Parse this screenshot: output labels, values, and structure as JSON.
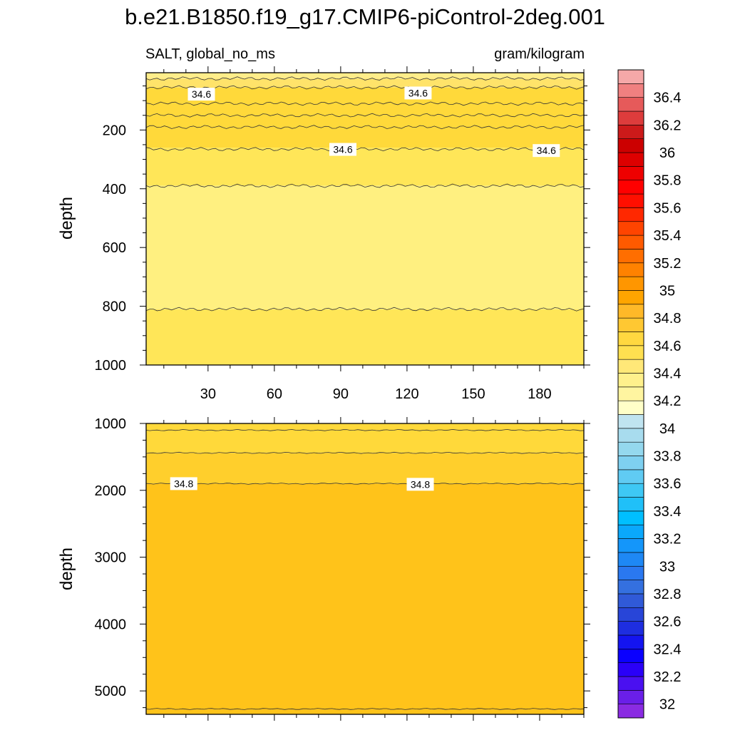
{
  "title": "b.e21.B1850.f19_g17.CMIP6-piControl-2deg.001",
  "chart_data": {
    "type": "contour",
    "variable_label": "SALT, global_no_ms",
    "units_label": "gram/kilogram",
    "x_range": [
      2,
      200
    ],
    "x_ticks": [
      30,
      60,
      90,
      120,
      150,
      180
    ],
    "colorbar": {
      "levels": [
        32,
        32.1,
        32.2,
        32.3,
        32.4,
        32.5,
        32.6,
        32.7,
        32.8,
        32.9,
        33,
        33.1,
        33.2,
        33.3,
        33.4,
        33.5,
        33.6,
        33.7,
        33.8,
        33.9,
        34,
        34.1,
        34.2,
        34.3,
        34.4,
        34.5,
        34.6,
        34.7,
        34.8,
        34.9,
        35,
        35.1,
        35.2,
        35.3,
        35.4,
        35.5,
        35.6,
        35.7,
        35.8,
        35.9,
        36,
        36.1,
        36.2,
        36.3,
        36.4,
        36.5
      ],
      "colors": [
        "#8a2be2",
        "#6a1fe8",
        "#4a10f0",
        "#2a00f8",
        "#0a00ff",
        "#1414f0",
        "#1e2ee0",
        "#2845d8",
        "#305ad8",
        "#3470e0",
        "#2a78f0",
        "#1e88f5",
        "#1496fa",
        "#0aa8fc",
        "#00bfff",
        "#20c0f8",
        "#3ec8f5",
        "#60cbf3",
        "#7ed0f0",
        "#94d8ee",
        "#a8dcee",
        "#c0e4f0",
        "#ffffc8",
        "#fff5a0",
        "#fff08c",
        "#ffe878",
        "#ffe050",
        "#ffd840",
        "#ffc832",
        "#ffb928",
        "#ffa500",
        "#ff9600",
        "#ff8200",
        "#ff6e00",
        "#ff5a00",
        "#ff4400",
        "#ff2800",
        "#ff0f00",
        "#ff0000",
        "#ee0000",
        "#dd0000",
        "#cc0000",
        "#cc1a1a",
        "#dd3c3c",
        "#e65a5a",
        "#f08080",
        "#f5a8a8"
      ],
      "label_values": [
        32,
        32.2,
        32.4,
        32.6,
        32.8,
        33,
        33.2,
        33.4,
        33.6,
        33.8,
        34,
        34.2,
        34.4,
        34.6,
        34.8,
        35,
        35.2,
        35.4,
        35.6,
        35.8,
        36,
        36.2,
        36.4
      ],
      "label_texts": [
        "32",
        "32.2",
        "32.4",
        "32.6",
        "32.8",
        "33",
        "33.2",
        "33.4",
        "33.6",
        "33.8",
        "34",
        "34.2",
        "34.4",
        "34.6",
        "34.8",
        "35",
        "35.2",
        "35.4",
        "35.6",
        "35.8",
        "36",
        "36.2",
        "36.4"
      ]
    },
    "panels": [
      {
        "name": "upper",
        "ylabel": "depth",
        "y_range": [
          1000,
          5
        ],
        "y_ticks": [
          200,
          400,
          600,
          800,
          1000
        ],
        "bands": [
          {
            "from": 5,
            "to": 25,
            "color": "#ffed8a"
          },
          {
            "from": 25,
            "to": 55,
            "color": "#ffe36a"
          },
          {
            "from": 55,
            "to": 260,
            "color": "#ffd93a"
          },
          {
            "from": 260,
            "to": 390,
            "color": "#ffe658"
          },
          {
            "from": 390,
            "to": 810,
            "color": "#fff080"
          },
          {
            "from": 810,
            "to": 1000,
            "color": "#ffe658"
          }
        ],
        "contours": [
          25,
          55,
          110,
          150,
          190,
          265,
          390,
          810
        ],
        "contour_labels": [
          {
            "text": "34.6",
            "x": 27,
            "y": 78
          },
          {
            "text": "34.6",
            "x": 125,
            "y": 74
          },
          {
            "text": "34.6",
            "x": 91,
            "y": 266
          },
          {
            "text": "34.6",
            "x": 183,
            "y": 270
          }
        ]
      },
      {
        "name": "lower",
        "ylabel": "depth",
        "y_range": [
          1000,
          5350
        ],
        "y_ticks": [
          1000,
          2000,
          3000,
          4000,
          5000
        ],
        "bands": [
          {
            "from": 1000,
            "to": 1440,
            "color": "#ffd93a"
          },
          {
            "from": 1440,
            "to": 1900,
            "color": "#ffcf2c"
          },
          {
            "from": 1900,
            "to": 5350,
            "color": "#ffc31a"
          }
        ],
        "contours": [
          1100,
          1440,
          1900,
          5270
        ],
        "contour_labels": [
          {
            "text": "34.8",
            "x": 19,
            "y": 1900
          },
          {
            "text": "34.8",
            "x": 126,
            "y": 1910
          }
        ]
      }
    ]
  }
}
